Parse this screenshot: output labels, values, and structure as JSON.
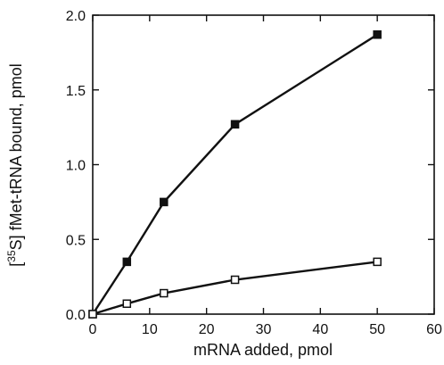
{
  "chart_data": {
    "type": "line",
    "xlabel": "mRNA added, pmol",
    "ylabel_prefix": "[",
    "ylabel_super": "35",
    "ylabel_rest": "S] fMet-tRNA bound, pmol",
    "xlim": [
      0,
      60
    ],
    "ylim": [
      0,
      2.0
    ],
    "x_ticks": [
      "0",
      "10",
      "20",
      "30",
      "40",
      "50",
      "60"
    ],
    "y_ticks": [
      "0.0",
      "0.5",
      "1.0",
      "1.5",
      "2.0"
    ],
    "grid": false,
    "legend": "none",
    "series": [
      {
        "marker": "filled-square",
        "x": [
          0,
          6,
          12.5,
          25,
          50
        ],
        "y": [
          0.0,
          0.35,
          0.75,
          1.27,
          1.87
        ]
      },
      {
        "marker": "open-square",
        "x": [
          0,
          6,
          12.5,
          25,
          50
        ],
        "y": [
          0.0,
          0.07,
          0.14,
          0.23,
          0.35
        ]
      }
    ]
  }
}
